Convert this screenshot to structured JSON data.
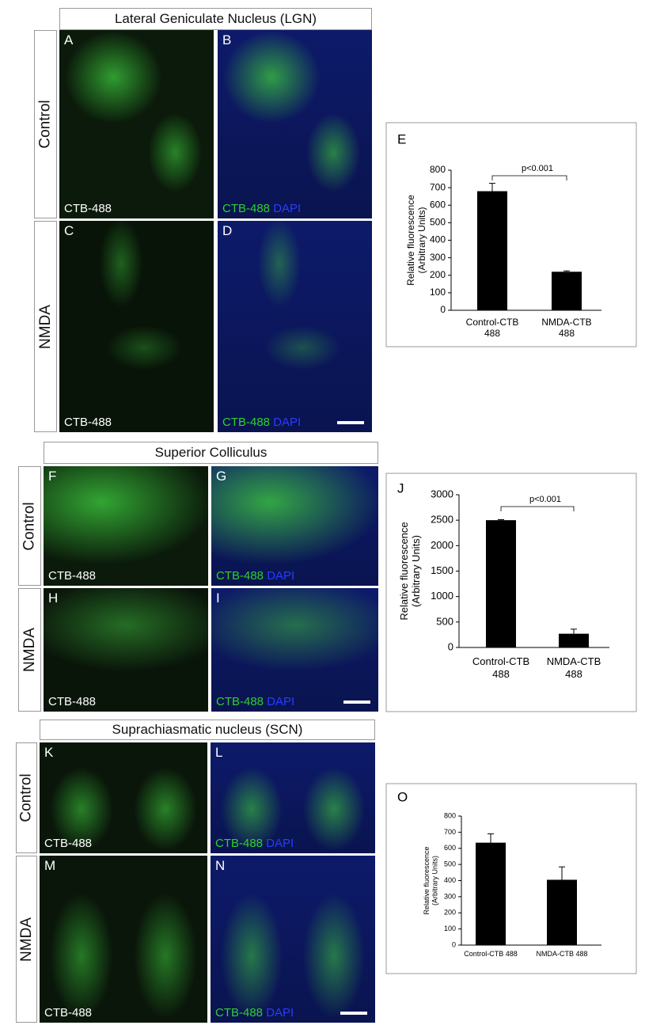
{
  "sections": [
    {
      "title": "Lateral Geniculate Nucleus (LGN)",
      "rows": [
        {
          "condition": "Control",
          "panels": [
            {
              "letter": "A",
              "stain": "CTB-488"
            },
            {
              "letter": "B",
              "stain": "CTB-488",
              "counterstain": "DAPI"
            }
          ]
        },
        {
          "condition": "NMDA",
          "panels": [
            {
              "letter": "C",
              "stain": "CTB-488"
            },
            {
              "letter": "D",
              "stain": "CTB-488",
              "counterstain": "DAPI"
            }
          ]
        }
      ]
    },
    {
      "title": "Superior Colliculus",
      "rows": [
        {
          "condition": "Control",
          "panels": [
            {
              "letter": "F",
              "stain": "CTB-488"
            },
            {
              "letter": "G",
              "stain": "CTB-488",
              "counterstain": "DAPI"
            }
          ]
        },
        {
          "condition": "NMDA",
          "panels": [
            {
              "letter": "H",
              "stain": "CTB-488"
            },
            {
              "letter": "I",
              "stain": "CTB-488",
              "counterstain": "DAPI"
            }
          ]
        }
      ]
    },
    {
      "title": "Suprachiasmatic nucleus (SCN)",
      "rows": [
        {
          "condition": "Control",
          "panels": [
            {
              "letter": "K",
              "stain": "CTB-488"
            },
            {
              "letter": "L",
              "stain": "CTB-488",
              "counterstain": "DAPI"
            }
          ]
        },
        {
          "condition": "NMDA",
          "panels": [
            {
              "letter": "M",
              "stain": "CTB-488"
            },
            {
              "letter": "N",
              "stain": "CTB-488",
              "counterstain": "DAPI"
            }
          ]
        }
      ]
    }
  ],
  "chart_data": [
    {
      "type": "bar",
      "letter": "E",
      "ylabel": [
        "Relative fluorescence",
        "(Arbitrary Units)"
      ],
      "categories": [
        "Control-CTB 488",
        "NMDA-CTB 488"
      ],
      "values": [
        680,
        220
      ],
      "errors": [
        45,
        5
      ],
      "color": "#000000",
      "ylim": [
        0,
        800
      ],
      "yticks": [
        0,
        100,
        200,
        300,
        400,
        500,
        600,
        700,
        800
      ],
      "annotation": "p<0.001"
    },
    {
      "type": "bar",
      "letter": "J",
      "ylabel": [
        "Relative fluorescence",
        "(Arbitrary Units)"
      ],
      "categories": [
        "Control-CTB 488",
        "NMDA-CTB 488"
      ],
      "values": [
        2500,
        270
      ],
      "errors": [
        10,
        90
      ],
      "color": "#000000",
      "ylim": [
        0,
        3000
      ],
      "yticks": [
        0,
        500,
        1000,
        1500,
        2000,
        2500,
        3000
      ],
      "annotation": "p<0.001"
    },
    {
      "type": "bar",
      "letter": "O",
      "ylabel": [
        "Relative fluorescence",
        "(Arbitrary Units)"
      ],
      "categories": [
        "Control-CTB 488",
        "NMDA-CTB 488"
      ],
      "values": [
        635,
        405
      ],
      "errors": [
        55,
        80
      ],
      "color": "#000000",
      "ylim": [
        0,
        800
      ],
      "yticks": [
        0,
        100,
        200,
        300,
        400,
        500,
        600,
        700,
        800
      ]
    }
  ]
}
